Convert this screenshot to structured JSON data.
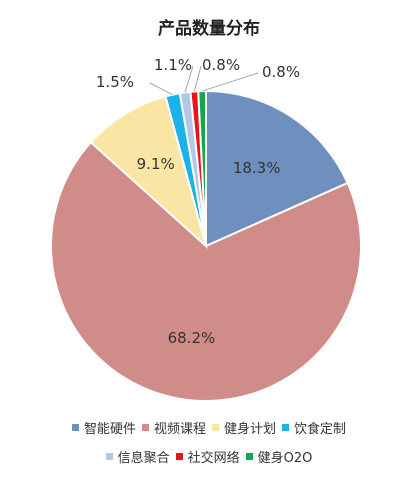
{
  "chart_data": {
    "type": "pie",
    "title": "产品数量分布",
    "slices": [
      {
        "name": "智能硬件",
        "value": 18.3,
        "label": "18.3%",
        "color": "#6f8fbf"
      },
      {
        "name": "视频课程",
        "value": 68.2,
        "label": "68.2%",
        "color": "#d08c89"
      },
      {
        "name": "健身计划",
        "value": 9.1,
        "label": "9.1%",
        "color": "#fbe5a4"
      },
      {
        "name": "饮食定制",
        "value": 1.5,
        "label": "1.5%",
        "color": "#1ab2e8"
      },
      {
        "name": "信息聚合",
        "value": 1.1,
        "label": "1.1%",
        "color": "#b3c7e6"
      },
      {
        "name": "社交网络",
        "value": 0.8,
        "label": "0.8%",
        "color": "#e8151b"
      },
      {
        "name": "健身O2O",
        "value": 0.8,
        "label": "0.8%",
        "color": "#18a64d"
      }
    ],
    "legend_placement": "bottom"
  }
}
